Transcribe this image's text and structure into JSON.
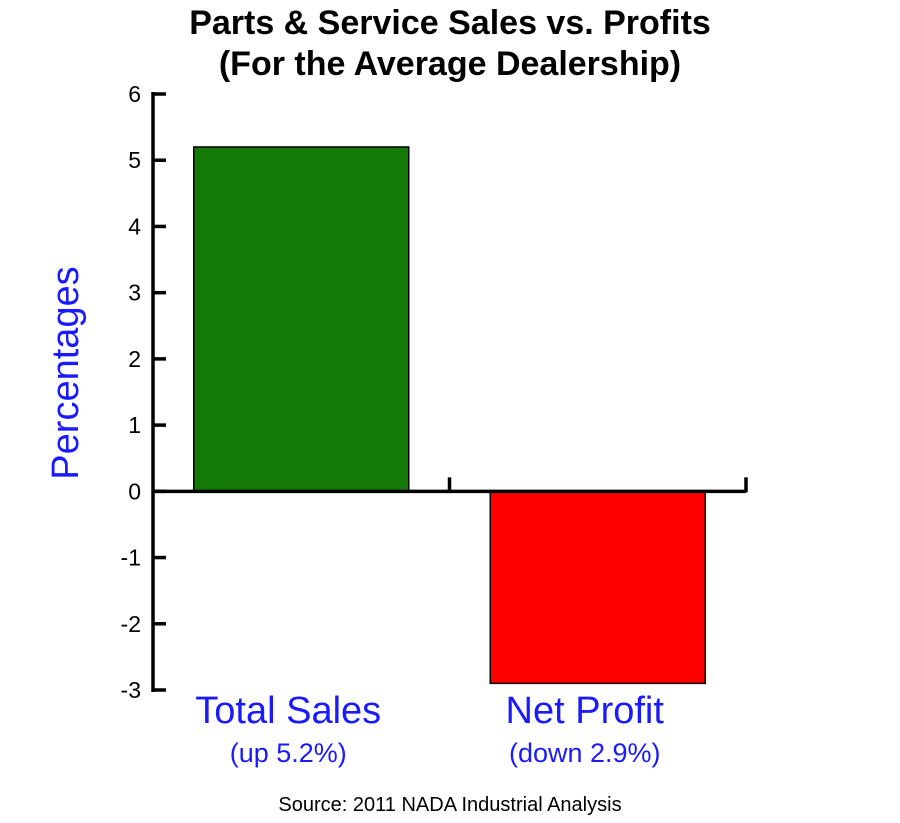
{
  "chart_data": {
    "type": "bar",
    "title_line1": "Parts & Service Sales vs. Profits",
    "title_line2": "(For the Average Dealership)",
    "ylabel": "Percentages",
    "ylim": [
      -3,
      6
    ],
    "yticks": [
      6,
      5,
      4,
      3,
      2,
      1,
      0,
      -1,
      -2,
      -3
    ],
    "categories": [
      "Total Sales",
      "Net Profit"
    ],
    "category_sublabels": [
      "(up 5.2%)",
      "(down 2.9%)"
    ],
    "values": [
      5.2,
      -2.9
    ],
    "bar_colors": [
      "#137a08",
      "#ff0000"
    ],
    "label_color": "#1a1aff",
    "grid": false,
    "source": "Source: 2011 NADA Industrial Analysis"
  }
}
